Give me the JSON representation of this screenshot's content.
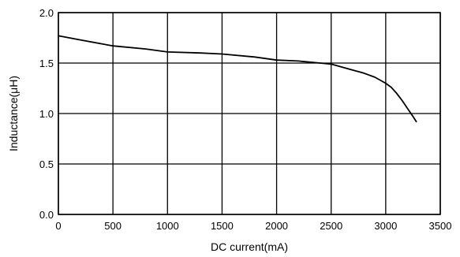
{
  "chart_data": {
    "type": "line",
    "xlabel": "DC current(mA)",
    "ylabel": "Inductance(μH)",
    "xlim": [
      0,
      3500
    ],
    "ylim": [
      0.0,
      2.0
    ],
    "x_ticks": [
      "0",
      "500",
      "1000",
      "1500",
      "2000",
      "2500",
      "3000",
      "3500"
    ],
    "y_ticks": [
      "0.0",
      "0.5",
      "1.0",
      "1.5",
      "2.0"
    ],
    "grid": true,
    "series": [
      {
        "x": [
          0,
          200,
          500,
          800,
          1000,
          1300,
          1500,
          1800,
          2000,
          2200,
          2400,
          2500,
          2600,
          2700,
          2800,
          2900,
          3000,
          3050,
          3100,
          3150,
          3200,
          3250,
          3280
        ],
        "y": [
          1.77,
          1.73,
          1.67,
          1.64,
          1.61,
          1.6,
          1.59,
          1.56,
          1.53,
          1.52,
          1.5,
          1.49,
          1.46,
          1.43,
          1.4,
          1.36,
          1.3,
          1.26,
          1.2,
          1.13,
          1.05,
          0.97,
          0.92
        ]
      }
    ]
  }
}
